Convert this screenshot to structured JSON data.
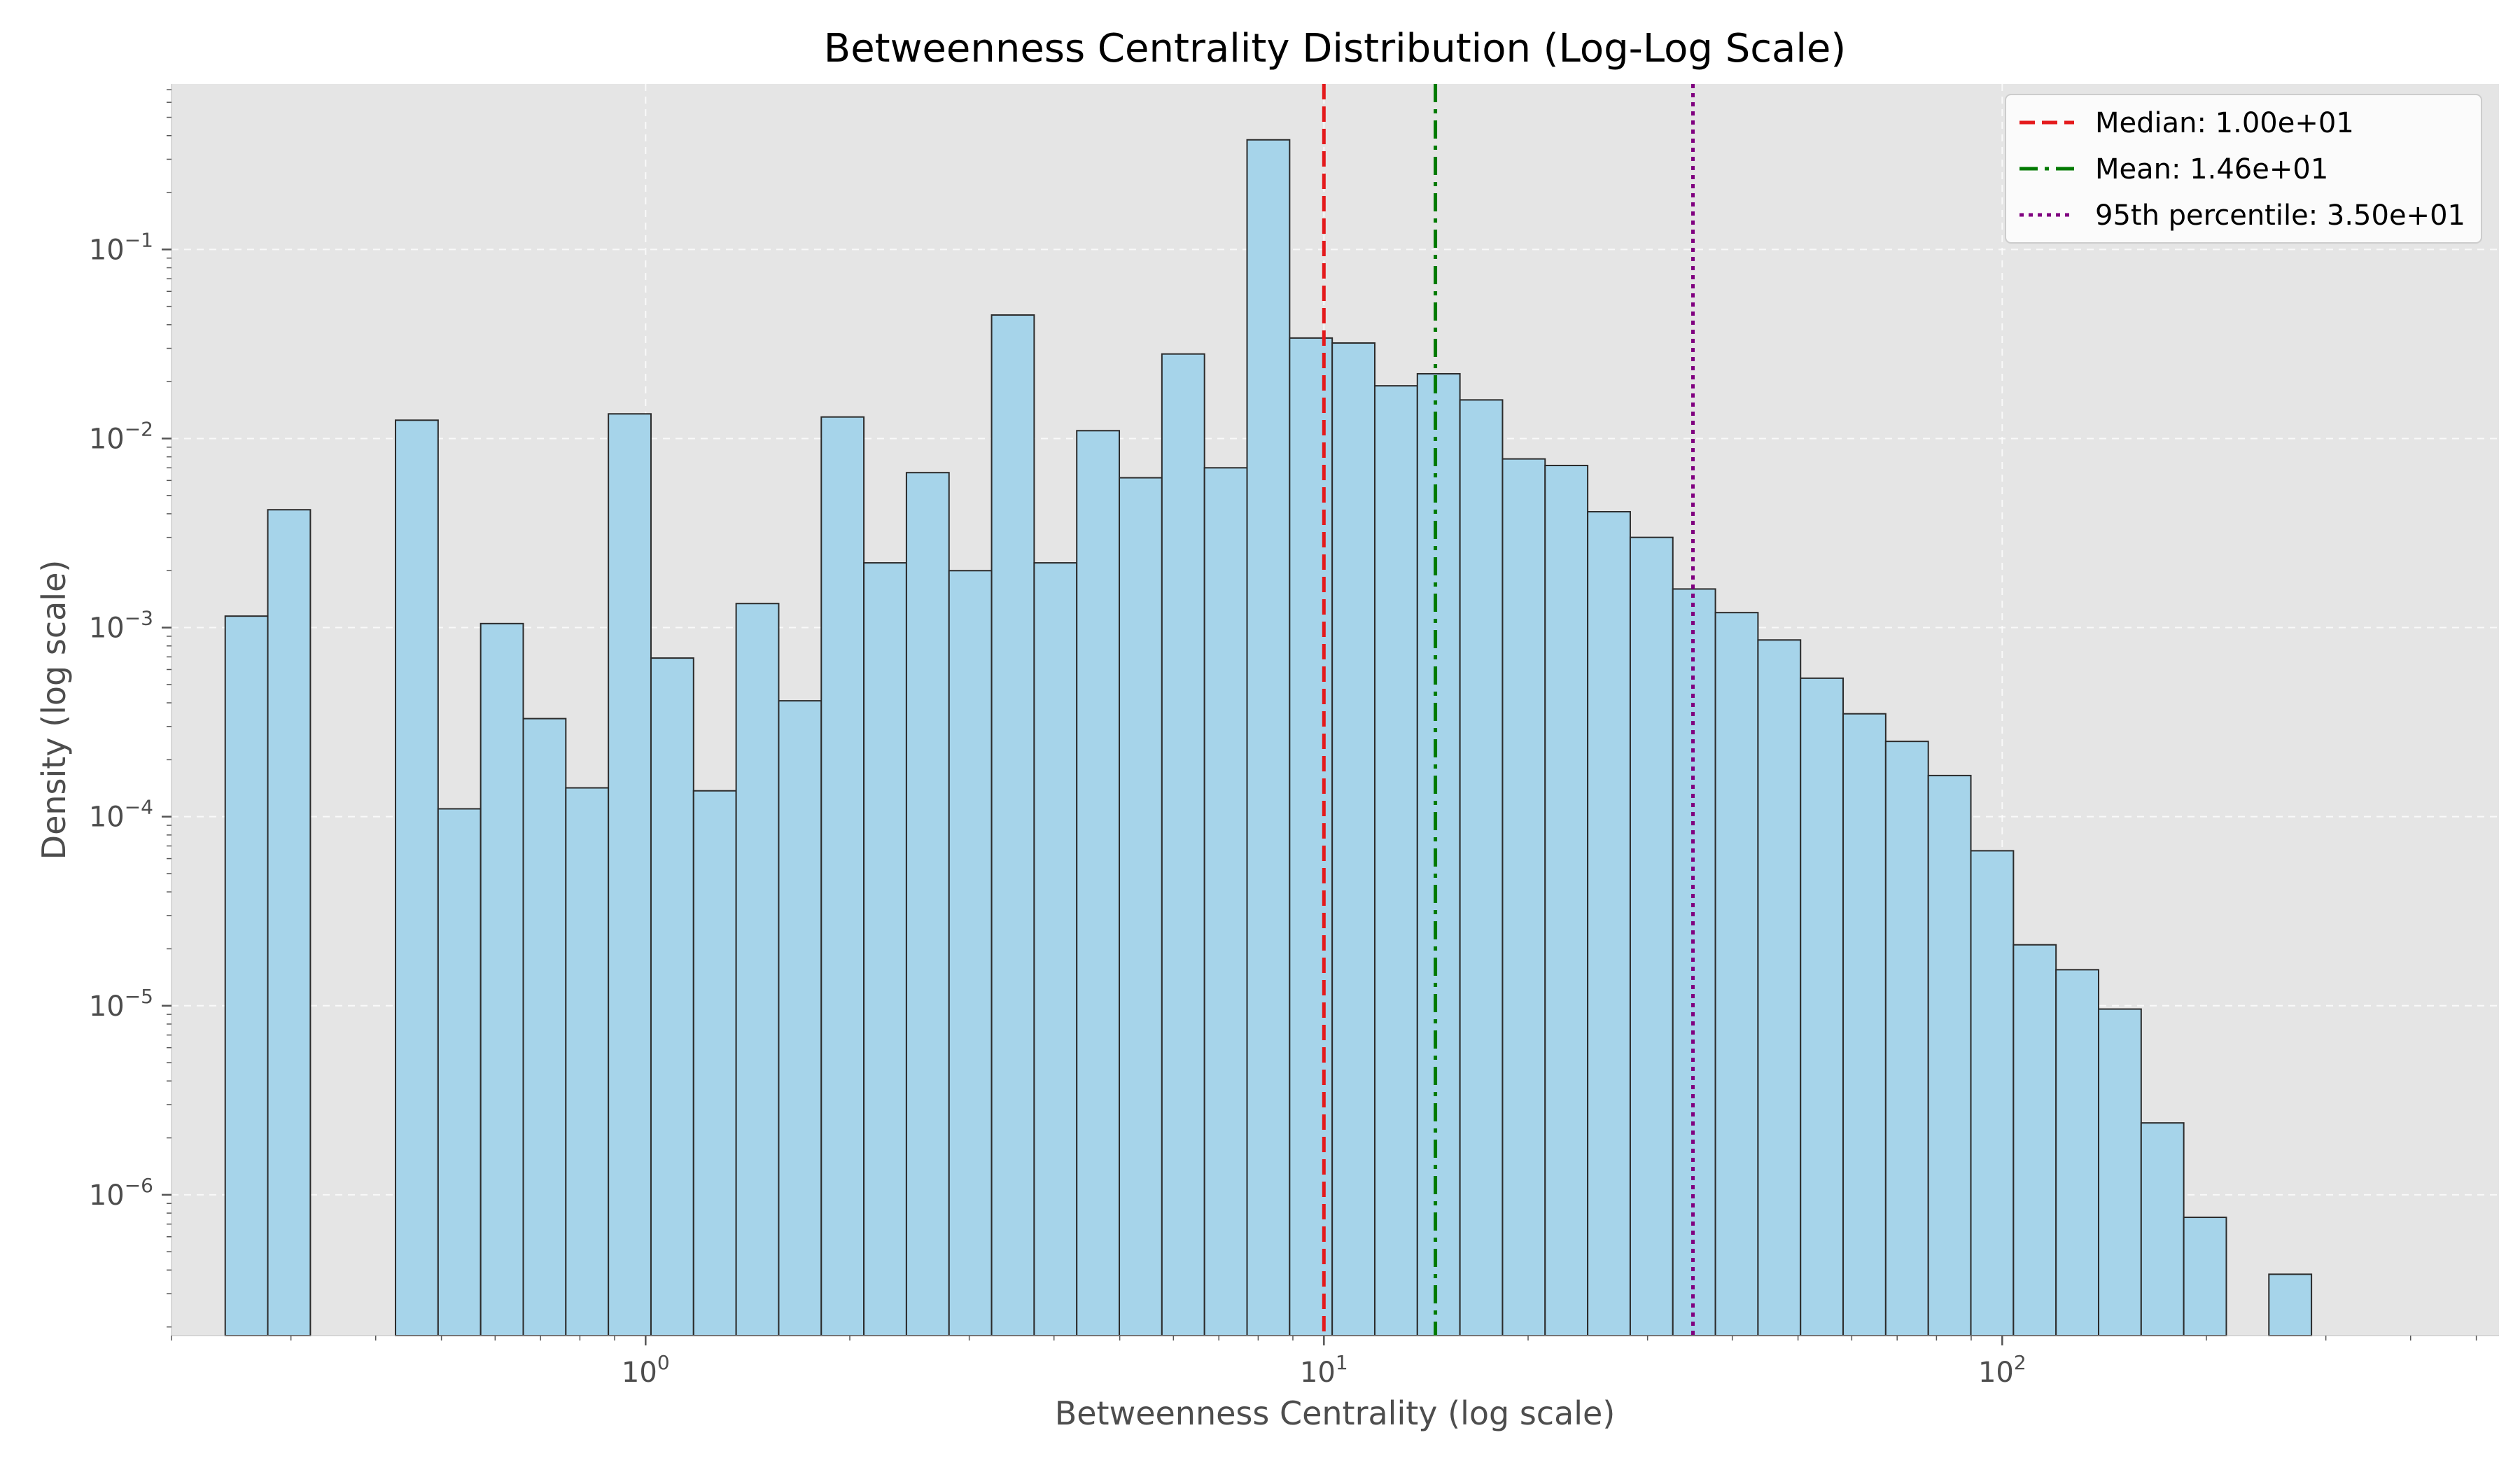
{
  "chart_data": {
    "type": "bar",
    "title": "Betweenness Centrality Distribution (Log-Log Scale)",
    "xlabel": "Betweenness Centrality (log scale)",
    "ylabel": "Density (log scale)",
    "x_scale": "log",
    "y_scale": "log",
    "xlim": [
      0.2,
      540
    ],
    "ylim": [
      1.8e-07,
      0.75
    ],
    "grid": true,
    "legend_position": "top-right",
    "x_ticks": [
      {
        "value": 1,
        "mantissa": "10",
        "exponent": "0"
      },
      {
        "value": 10,
        "mantissa": "10",
        "exponent": "1"
      },
      {
        "value": 100,
        "mantissa": "10",
        "exponent": "2"
      }
    ],
    "y_ticks": [
      {
        "value": 1e-06,
        "mantissa": "10",
        "exponent": "−6"
      },
      {
        "value": 1e-05,
        "mantissa": "10",
        "exponent": "−5"
      },
      {
        "value": 0.0001,
        "mantissa": "10",
        "exponent": "−4"
      },
      {
        "value": 0.001,
        "mantissa": "10",
        "exponent": "−3"
      },
      {
        "value": 0.01,
        "mantissa": "10",
        "exponent": "−2"
      },
      {
        "value": 0.1,
        "mantissa": "10",
        "exponent": "−1"
      }
    ],
    "bins": {
      "start": 0.24,
      "ratio": 1.1555,
      "values": [
        0.00115,
        0.0042,
        null,
        null,
        0.0125,
        0.00011,
        0.00105,
        0.00033,
        0.000142,
        0.0135,
        0.00069,
        0.000137,
        0.00134,
        0.00041,
        0.013,
        0.0022,
        0.0066,
        0.002,
        0.045,
        0.0022,
        0.011,
        0.0062,
        0.028,
        0.007,
        0.38,
        0.034,
        0.032,
        0.019,
        0.022,
        0.016,
        0.0078,
        0.0072,
        0.0041,
        0.003,
        0.0016,
        0.0012,
        0.00086,
        0.00054,
        0.00035,
        0.00025,
        0.000165,
        6.6e-05,
        2.1e-05,
        1.55e-05,
        9.6e-06,
        2.4e-06,
        7.6e-07,
        null,
        3.8e-07
      ]
    },
    "reference_lines": [
      {
        "name": "Median: 1.00e+01",
        "value": 10.0,
        "color": "#e41a1c",
        "style": "dashed"
      },
      {
        "name": "Mean: 1.46e+01",
        "value": 14.6,
        "color": "#007a00",
        "style": "dashdot"
      },
      {
        "name": "95th percentile: 3.50e+01",
        "value": 35.0,
        "color": "#800080",
        "style": "dotted"
      }
    ],
    "colors": {
      "bar_fill": "#a6d4ea",
      "bar_edge": "#2b2b2b",
      "plot_bg": "#e5e5e5",
      "grid": "#ffffff"
    }
  }
}
